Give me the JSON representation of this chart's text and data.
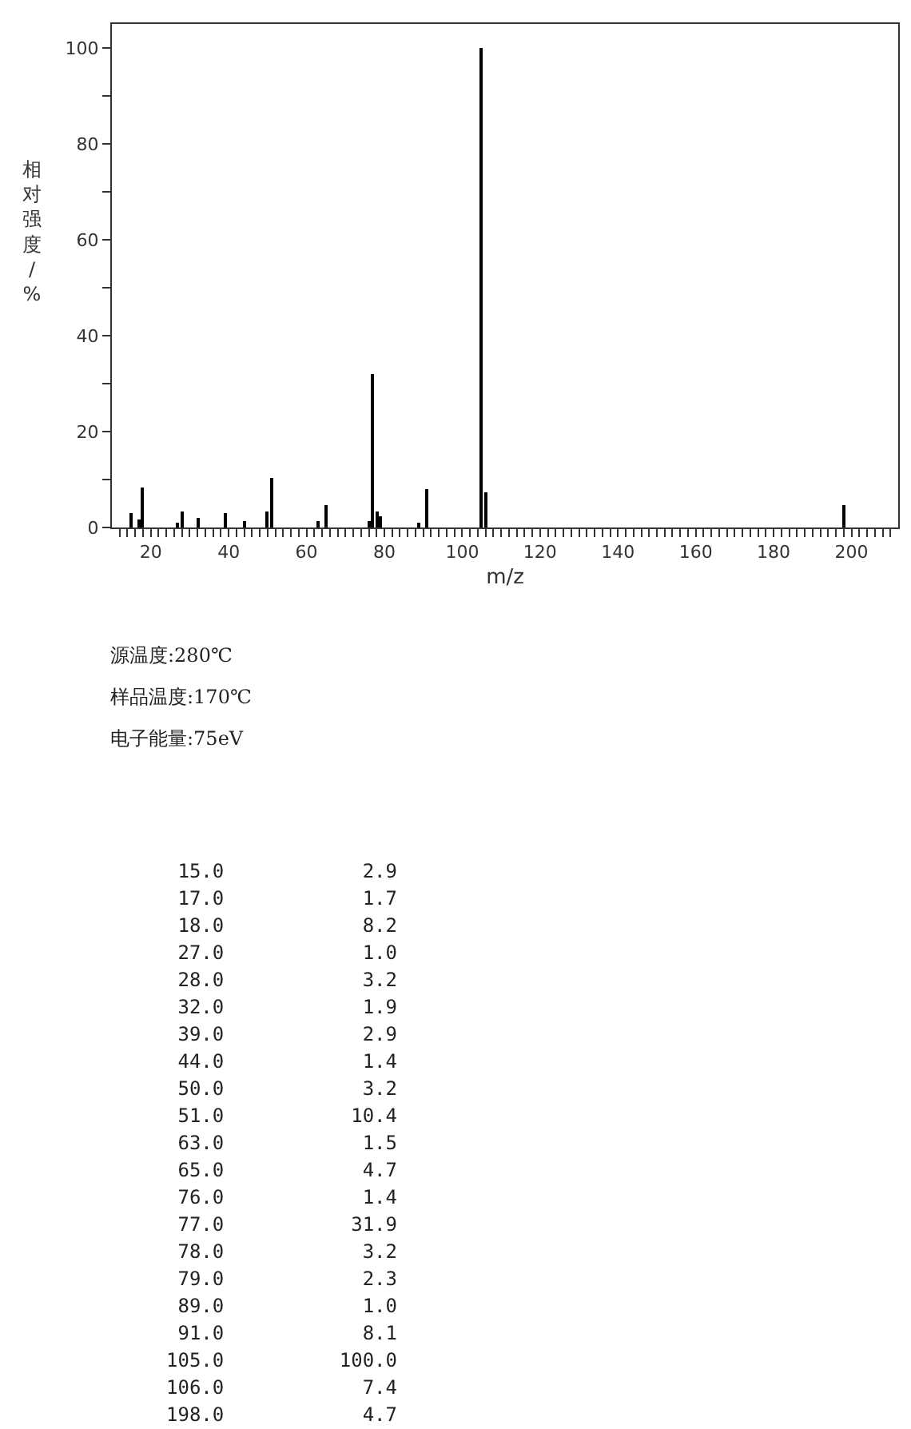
{
  "chart_data": {
    "type": "bar",
    "xlabel": "m/z",
    "ylabel": "相对强度/%",
    "x": [
      15.0,
      17.0,
      18.0,
      27.0,
      28.0,
      32.0,
      39.0,
      44.0,
      50.0,
      51.0,
      63.0,
      65.0,
      76.0,
      77.0,
      78.0,
      79.0,
      89.0,
      91.0,
      105.0,
      106.0,
      198.0
    ],
    "values": [
      2.9,
      1.7,
      8.2,
      1.0,
      3.2,
      1.9,
      2.9,
      1.4,
      3.2,
      10.4,
      1.5,
      4.7,
      1.4,
      31.9,
      3.2,
      2.3,
      1.0,
      8.1,
      100.0,
      7.4,
      4.7
    ],
    "color": "#000000",
    "xlim": [
      10,
      212
    ],
    "ylim": [
      0,
      105
    ],
    "yticks": [
      0,
      {
        "value": 10,
        "label": null
      },
      20,
      {
        "value": 30,
        "label": null
      },
      40,
      {
        "value": 50,
        "label": null
      },
      60,
      {
        "value": 70,
        "label": null
      },
      80,
      {
        "value": 90,
        "label": null
      },
      100
    ],
    "xticks": [
      {
        "value": 12,
        "label": null
      },
      {
        "value": 14,
        "label": null
      },
      {
        "value": 16,
        "label": null
      },
      {
        "value": 18,
        "label": null
      },
      20,
      {
        "value": 22,
        "label": null
      },
      {
        "value": 24,
        "label": null
      },
      {
        "value": 26,
        "label": null
      },
      {
        "value": 28,
        "label": null
      },
      {
        "value": 30,
        "label": null
      },
      {
        "value": 32,
        "label": null
      },
      {
        "value": 34,
        "label": null
      },
      {
        "value": 36,
        "label": null
      },
      {
        "value": 38,
        "label": null
      },
      40,
      {
        "value": 42,
        "label": null
      },
      {
        "value": 44,
        "label": null
      },
      {
        "value": 46,
        "label": null
      },
      {
        "value": 48,
        "label": null
      },
      {
        "value": 50,
        "label": null
      },
      {
        "value": 52,
        "label": null
      },
      {
        "value": 54,
        "label": null
      },
      {
        "value": 56,
        "label": null
      },
      {
        "value": 58,
        "label": null
      },
      60,
      {
        "value": 62,
        "label": null
      },
      {
        "value": 64,
        "label": null
      },
      {
        "value": 66,
        "label": null
      },
      {
        "value": 68,
        "label": null
      },
      {
        "value": 70,
        "label": null
      },
      {
        "value": 72,
        "label": null
      },
      {
        "value": 74,
        "label": null
      },
      {
        "value": 76,
        "label": null
      },
      {
        "value": 78,
        "label": null
      },
      80,
      {
        "value": 82,
        "label": null
      },
      {
        "value": 84,
        "label": null
      },
      {
        "value": 86,
        "label": null
      },
      {
        "value": 88,
        "label": null
      },
      {
        "value": 90,
        "label": null
      },
      {
        "value": 92,
        "label": null
      },
      {
        "value": 94,
        "label": null
      },
      {
        "value": 96,
        "label": null
      },
      {
        "value": 98,
        "label": null
      },
      100,
      {
        "value": 102,
        "label": null
      },
      {
        "value": 104,
        "label": null
      },
      {
        "value": 106,
        "label": null
      },
      {
        "value": 108,
        "label": null
      },
      {
        "value": 110,
        "label": null
      },
      {
        "value": 112,
        "label": null
      },
      {
        "value": 114,
        "label": null
      },
      {
        "value": 116,
        "label": null
      },
      {
        "value": 118,
        "label": null
      },
      120,
      {
        "value": 122,
        "label": null
      },
      {
        "value": 124,
        "label": null
      },
      {
        "value": 126,
        "label": null
      },
      {
        "value": 128,
        "label": null
      },
      {
        "value": 130,
        "label": null
      },
      {
        "value": 132,
        "label": null
      },
      {
        "value": 134,
        "label": null
      },
      {
        "value": 136,
        "label": null
      },
      {
        "value": 138,
        "label": null
      },
      140,
      {
        "value": 142,
        "label": null
      },
      {
        "value": 144,
        "label": null
      },
      {
        "value": 146,
        "label": null
      },
      {
        "value": 148,
        "label": null
      },
      {
        "value": 150,
        "label": null
      },
      {
        "value": 152,
        "label": null
      },
      {
        "value": 154,
        "label": null
      },
      {
        "value": 156,
        "label": null
      },
      {
        "value": 158,
        "label": null
      },
      160,
      {
        "value": 162,
        "label": null
      },
      {
        "value": 164,
        "label": null
      },
      {
        "value": 166,
        "label": null
      },
      {
        "value": 168,
        "label": null
      },
      {
        "value": 170,
        "label": null
      },
      {
        "value": 172,
        "label": null
      },
      {
        "value": 174,
        "label": null
      },
      {
        "value": 176,
        "label": null
      },
      {
        "value": 178,
        "label": null
      },
      180,
      {
        "value": 182,
        "label": null
      },
      {
        "value": 184,
        "label": null
      },
      {
        "value": 186,
        "label": null
      },
      {
        "value": 188,
        "label": null
      },
      {
        "value": 190,
        "label": null
      },
      {
        "value": 192,
        "label": null
      },
      {
        "value": 194,
        "label": null
      },
      {
        "value": 196,
        "label": null
      },
      {
        "value": 198,
        "label": null
      },
      200,
      {
        "value": 202,
        "label": null
      },
      {
        "value": 204,
        "label": null
      },
      {
        "value": 206,
        "label": null
      },
      {
        "value": 208,
        "label": null
      },
      {
        "value": 210,
        "label": null
      }
    ],
    "annotations": [
      "源温度:280℃",
      "样品温度:170℃",
      "电子能量:75eV",
      " 15.0            2.9",
      " 17.0            1.7",
      " 18.0            8.2",
      " 27.0            1.0",
      " 28.0            3.2",
      " 32.0            1.9",
      " 39.0            2.9",
      " 44.0            1.4",
      " 50.0            3.2",
      " 51.0           10.4",
      " 63.0            1.5",
      " 65.0            4.7",
      " 76.0            1.4",
      " 77.0           31.9",
      " 78.0            3.2",
      " 79.0            2.3",
      " 89.0            1.0",
      " 91.0            8.1",
      "105.0          100.0",
      "106.0            7.4",
      "198.0            4.7"
    ]
  }
}
